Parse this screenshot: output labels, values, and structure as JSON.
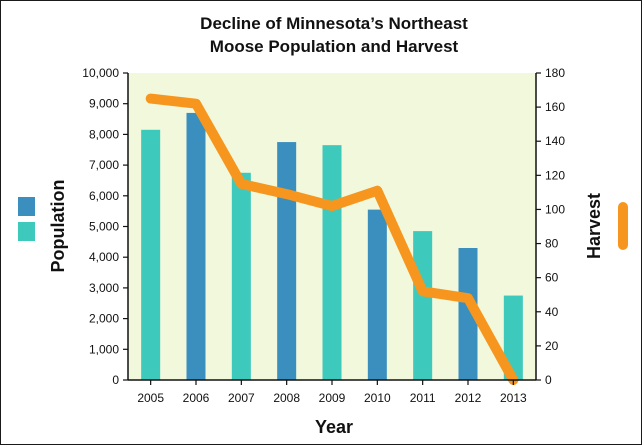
{
  "chart_data": {
    "type": "bar+line",
    "title_lines": [
      "Decline of Minnesota’s Northeast",
      "Moose Population and Harvest"
    ],
    "xlabel": "Year",
    "ylabel": "Population",
    "y2label": "Harvest",
    "categories": [
      "2005",
      "2006",
      "2007",
      "2008",
      "2009",
      "2010",
      "2011",
      "2012",
      "2013"
    ],
    "ylim": [
      0,
      10000
    ],
    "y_ticks": [
      "0",
      "1,000",
      "2,000",
      "3,000",
      "4,000",
      "5,000",
      "6,000",
      "7,000",
      "8,000",
      "9,000",
      "10,000"
    ],
    "y2lim": [
      0,
      180
    ],
    "y2_ticks": [
      "0",
      "20",
      "40",
      "60",
      "80",
      "100",
      "120",
      "140",
      "160",
      "180"
    ],
    "series": [
      {
        "name": "Population",
        "type": "bar",
        "values": [
          8150,
          8700,
          6750,
          7750,
          7650,
          5550,
          4850,
          4300,
          2750
        ],
        "colors": [
          "#3ec9bd",
          "#3a8fbf",
          "#3ec9bd",
          "#3a8fbf",
          "#3ec9bd",
          "#3a8fbf",
          "#3ec9bd",
          "#3a8fbf",
          "#3ec9bd"
        ]
      },
      {
        "name": "Harvest",
        "type": "line",
        "axis": "right",
        "values": [
          165,
          162,
          115,
          109,
          102,
          111,
          52,
          48,
          0
        ],
        "color": "#f7961e"
      }
    ],
    "legend_colors": [
      "#3a8fbf",
      "#3ec9bd"
    ],
    "plot_bg": "#f1f8dc"
  }
}
